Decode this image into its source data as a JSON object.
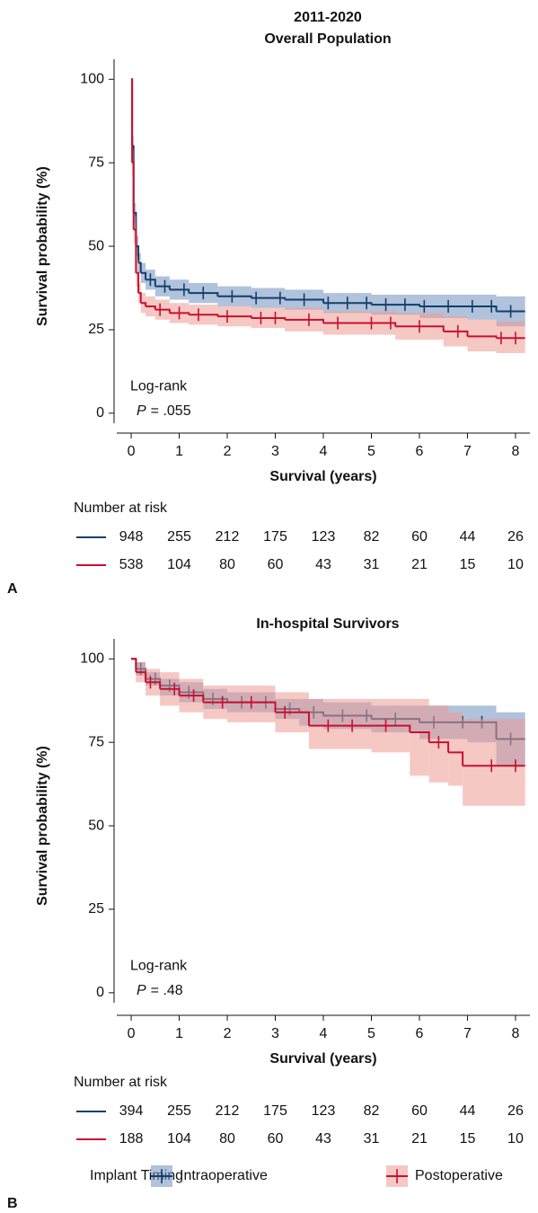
{
  "chart_data": [
    {
      "type": "step",
      "panel_label": "A",
      "title": "2011-2020",
      "subtitle": "Overall Population",
      "xlabel": "Survival (years)",
      "ylabel": "Survival probability (%)",
      "xlim": [
        -0.3,
        8.3
      ],
      "ylim": [
        -3,
        106
      ],
      "xticks": [
        0,
        1,
        2,
        3,
        4,
        5,
        6,
        7,
        8
      ],
      "yticks": [
        0,
        25,
        50,
        75,
        100
      ],
      "annotation": "Log-rank",
      "p_label": "P",
      "p_text": "= .055",
      "series": [
        {
          "color": "#123f6b",
          "fill_color": "#6f8fc0",
          "x": [
            0,
            0.02,
            0.05,
            0.1,
            0.15,
            0.2,
            0.3,
            0.5,
            0.8,
            1.2,
            1.8,
            2.5,
            3.2,
            4,
            5,
            6,
            7,
            7.6,
            8.2
          ],
          "values": [
            100,
            80,
            60,
            50,
            45,
            42,
            40,
            38,
            37,
            36,
            35,
            34.5,
            34,
            33,
            32.5,
            32,
            32,
            30.5,
            30.5
          ],
          "lower": [
            100,
            77,
            57,
            47,
            42,
            39,
            37,
            35,
            34,
            33,
            32,
            31.5,
            31,
            30,
            29.5,
            28.5,
            28,
            26,
            26
          ],
          "upper": [
            100,
            83,
            63,
            53,
            48,
            45,
            43,
            41,
            40,
            39,
            38,
            37.5,
            37,
            36,
            35.5,
            35.5,
            35.5,
            35,
            35
          ],
          "censored": [
            0.4,
            0.7,
            1.1,
            1.5,
            2.1,
            2.6,
            3.1,
            3.6,
            4.1,
            4.5,
            4.9,
            5.3,
            5.7,
            6.1,
            6.6,
            7.1,
            7.5,
            7.9
          ]
        },
        {
          "color": "#c8102e",
          "fill_color": "#ef9a94",
          "x": [
            0,
            0.02,
            0.05,
            0.1,
            0.15,
            0.2,
            0.3,
            0.5,
            0.8,
            1.2,
            1.8,
            2.5,
            3.2,
            4,
            5.5,
            6.5,
            7,
            7.6,
            8.2
          ],
          "values": [
            100,
            75,
            55,
            42,
            36,
            33,
            32,
            31,
            30,
            29.5,
            29,
            28.5,
            28,
            27,
            26,
            24.5,
            23,
            22.5,
            22.5
          ],
          "lower": [
            100,
            71,
            51,
            38,
            33,
            30,
            29,
            28,
            27,
            26.5,
            26,
            25.5,
            24.5,
            23.5,
            22,
            20,
            18.5,
            18,
            18
          ],
          "upper": [
            100,
            79,
            59,
            46,
            39,
            36,
            35,
            34,
            33,
            32.5,
            32,
            31.5,
            31.5,
            30.5,
            30,
            29,
            28,
            27.5,
            27.5
          ],
          "censored": [
            0.6,
            1.0,
            1.4,
            2.0,
            2.7,
            3.0,
            3.7,
            4.3,
            5.0,
            5.4,
            6.0,
            6.8,
            7.7,
            8.0
          ]
        }
      ],
      "risk_table": {
        "title": "Number at risk",
        "times": [
          0,
          1,
          2,
          3,
          4,
          5,
          6,
          7,
          8
        ],
        "rows": [
          [
            948,
            255,
            212,
            175,
            123,
            82,
            60,
            44,
            26
          ],
          [
            538,
            104,
            80,
            60,
            43,
            31,
            21,
            15,
            10
          ]
        ]
      }
    },
    {
      "type": "step",
      "panel_label": "B",
      "title": "In-hospital Survivors",
      "xlabel": "Survival (years)",
      "ylabel": "Survival probability (%)",
      "xlim": [
        -0.3,
        8.3
      ],
      "ylim": [
        -3,
        106
      ],
      "xticks": [
        0,
        1,
        2,
        3,
        4,
        5,
        6,
        7,
        8
      ],
      "yticks": [
        0,
        25,
        50,
        75,
        100
      ],
      "annotation": "Log-rank",
      "p_label": "P",
      "p_text": "= .48",
      "legend": {
        "title": "Implant Timing"
      },
      "series": [
        {
          "name": "Intraoperative",
          "color": "#123f6b",
          "fill_color": "#6f8fc0",
          "x": [
            0,
            0.1,
            0.3,
            0.6,
            1,
            1.5,
            2,
            3,
            3.5,
            4,
            5,
            6,
            7,
            7.6,
            8.2
          ],
          "values": [
            100,
            97,
            94,
            92,
            90,
            88,
            87,
            85,
            84,
            83,
            82,
            81,
            81,
            76,
            76
          ],
          "lower": [
            100,
            95,
            92,
            89,
            87,
            85,
            84,
            82,
            80,
            79,
            78,
            76,
            75,
            68,
            68
          ],
          "upper": [
            100,
            99,
            96,
            94,
            93,
            91,
            90,
            88,
            88,
            87,
            86,
            86,
            86,
            84,
            84
          ],
          "censored": [
            0.2,
            0.5,
            0.8,
            1.2,
            1.7,
            2.3,
            2.8,
            3.3,
            3.8,
            4.4,
            4.9,
            5.5,
            6.3,
            6.9,
            7.3,
            7.9
          ]
        },
        {
          "name": "Postoperative",
          "color": "#c8102e",
          "fill_color": "#ef9a94",
          "x": [
            0,
            0.1,
            0.3,
            0.6,
            1,
            1.5,
            2,
            3,
            3.7,
            5,
            5.8,
            6.2,
            6.6,
            6.9,
            8.2
          ],
          "values": [
            100,
            96,
            93,
            91,
            89,
            87,
            87,
            84,
            80,
            80,
            78,
            75,
            72,
            68,
            68
          ],
          "lower": [
            100,
            93,
            89,
            86,
            84,
            82,
            81,
            78,
            73,
            72,
            65,
            63,
            62,
            56,
            56
          ],
          "upper": [
            100,
            99,
            97,
            96,
            94,
            92,
            92,
            90,
            88,
            88,
            88,
            86,
            84,
            82,
            82
          ],
          "censored": [
            0.4,
            0.9,
            1.3,
            1.9,
            2.5,
            3.2,
            4.1,
            4.6,
            5.3,
            6.4,
            7.5,
            8.0
          ]
        }
      ],
      "risk_table": {
        "title": "Number at risk",
        "times": [
          0,
          1,
          2,
          3,
          4,
          5,
          6,
          7,
          8
        ],
        "rows": [
          [
            394,
            255,
            212,
            175,
            123,
            82,
            60,
            44,
            26
          ],
          [
            188,
            104,
            80,
            60,
            43,
            31,
            21,
            15,
            10
          ]
        ]
      }
    }
  ]
}
